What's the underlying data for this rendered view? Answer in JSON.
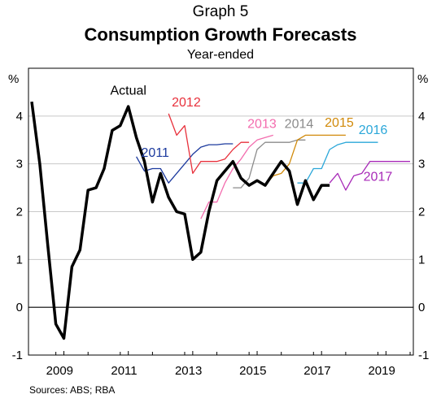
{
  "header": {
    "graph_label": "Graph 5",
    "title": "Consumption Growth Forecasts",
    "subtitle": "Year-ended"
  },
  "footer": {
    "sources": "Sources:   ABS; RBA"
  },
  "chart_data": {
    "type": "line",
    "y_unit_label_left": "%",
    "y_unit_label_right": "%",
    "ylim": [
      -1,
      5
    ],
    "xlim": [
      2008.0,
      2019.75
    ],
    "yticks": [
      -1,
      0,
      1,
      2,
      3,
      4
    ],
    "xticks": [
      2009,
      2011,
      2013,
      2015,
      2017,
      2019
    ],
    "xtick_labels": [
      "2009",
      "2011",
      "2013",
      "2015",
      "2017",
      "2019"
    ],
    "grid": true,
    "series": [
      {
        "name": "Actual",
        "color": "#000000",
        "x": [
          2008.0,
          2008.25,
          2008.5,
          2008.75,
          2009.0,
          2009.25,
          2009.5,
          2009.75,
          2010.0,
          2010.25,
          2010.5,
          2010.75,
          2011.0,
          2011.25,
          2011.5,
          2011.75,
          2012.0,
          2012.25,
          2012.5,
          2012.75,
          2013.0,
          2013.25,
          2013.5,
          2013.75,
          2014.0,
          2014.25,
          2014.5,
          2014.75,
          2015.0,
          2015.25,
          2015.5,
          2015.75,
          2016.0,
          2016.25,
          2016.5,
          2016.75,
          2017.0,
          2017.25
        ],
        "y": [
          4.3,
          3.0,
          1.3,
          -0.35,
          -0.65,
          0.85,
          1.2,
          2.45,
          2.5,
          2.9,
          3.7,
          3.8,
          4.2,
          3.55,
          3.05,
          2.2,
          2.8,
          2.3,
          2.0,
          1.95,
          1.0,
          1.15,
          2.0,
          2.65,
          2.85,
          3.05,
          2.7,
          2.55,
          2.65,
          2.55,
          2.8,
          3.05,
          2.85,
          2.15,
          2.65,
          2.25,
          2.55,
          2.55
        ]
      },
      {
        "name": "2011",
        "color": "#1c3a9e",
        "x": [
          2011.25,
          2011.5,
          2011.75,
          2012.0,
          2012.25,
          2012.5,
          2012.75,
          2013.0,
          2013.25,
          2013.5,
          2013.75,
          2014.0,
          2014.25
        ],
        "y": [
          3.15,
          2.85,
          2.9,
          2.9,
          2.6,
          2.8,
          3.0,
          3.2,
          3.35,
          3.4,
          3.4,
          3.42,
          3.42
        ]
      },
      {
        "name": "2012",
        "color": "#e8313c",
        "x": [
          2012.25,
          2012.5,
          2012.75,
          2013.0,
          2013.25,
          2013.5,
          2013.75,
          2014.0,
          2014.25,
          2014.5,
          2014.75
        ],
        "y": [
          4.05,
          3.6,
          3.8,
          2.8,
          3.05,
          3.05,
          3.05,
          3.1,
          3.3,
          3.45,
          3.45
        ]
      },
      {
        "name": "2013",
        "color": "#f36cae",
        "x": [
          2013.25,
          2013.5,
          2013.75,
          2014.0,
          2014.25,
          2014.5,
          2014.75,
          2015.0,
          2015.25,
          2015.5
        ],
        "y": [
          1.85,
          2.2,
          2.2,
          2.6,
          2.9,
          3.1,
          3.35,
          3.5,
          3.55,
          3.6
        ]
      },
      {
        "name": "2014",
        "color": "#8b8b8b",
        "x": [
          2014.25,
          2014.5,
          2014.75,
          2015.0,
          2015.25,
          2015.5,
          2015.75,
          2016.0,
          2016.25,
          2016.5
        ],
        "y": [
          2.5,
          2.5,
          2.7,
          3.3,
          3.45,
          3.45,
          3.45,
          3.45,
          3.5,
          3.5
        ]
      },
      {
        "name": "2015",
        "color": "#d18a0a",
        "x": [
          2015.25,
          2015.5,
          2015.75,
          2016.0,
          2016.25,
          2016.5,
          2016.75,
          2017.0,
          2017.25,
          2017.5,
          2017.75
        ],
        "y": [
          2.55,
          2.75,
          2.8,
          3.0,
          3.5,
          3.6,
          3.6,
          3.6,
          3.6,
          3.6,
          3.6
        ]
      },
      {
        "name": "2016",
        "color": "#2ba7d9",
        "x": [
          2016.25,
          2016.5,
          2016.75,
          2017.0,
          2017.25,
          2017.5,
          2017.75,
          2018.0,
          2018.25,
          2018.5,
          2018.75
        ],
        "y": [
          2.6,
          2.6,
          2.9,
          2.9,
          3.3,
          3.4,
          3.45,
          3.45,
          3.45,
          3.45,
          3.45
        ]
      },
      {
        "name": "2017",
        "color": "#a82ab8",
        "x": [
          2017.25,
          2017.5,
          2017.75,
          2018.0,
          2018.25,
          2018.5,
          2018.75,
          2019.0,
          2019.25,
          2019.5,
          2019.75
        ],
        "y": [
          2.6,
          2.8,
          2.45,
          2.75,
          2.8,
          3.05,
          3.05,
          3.05,
          3.05,
          3.05,
          3.05
        ]
      }
    ]
  }
}
